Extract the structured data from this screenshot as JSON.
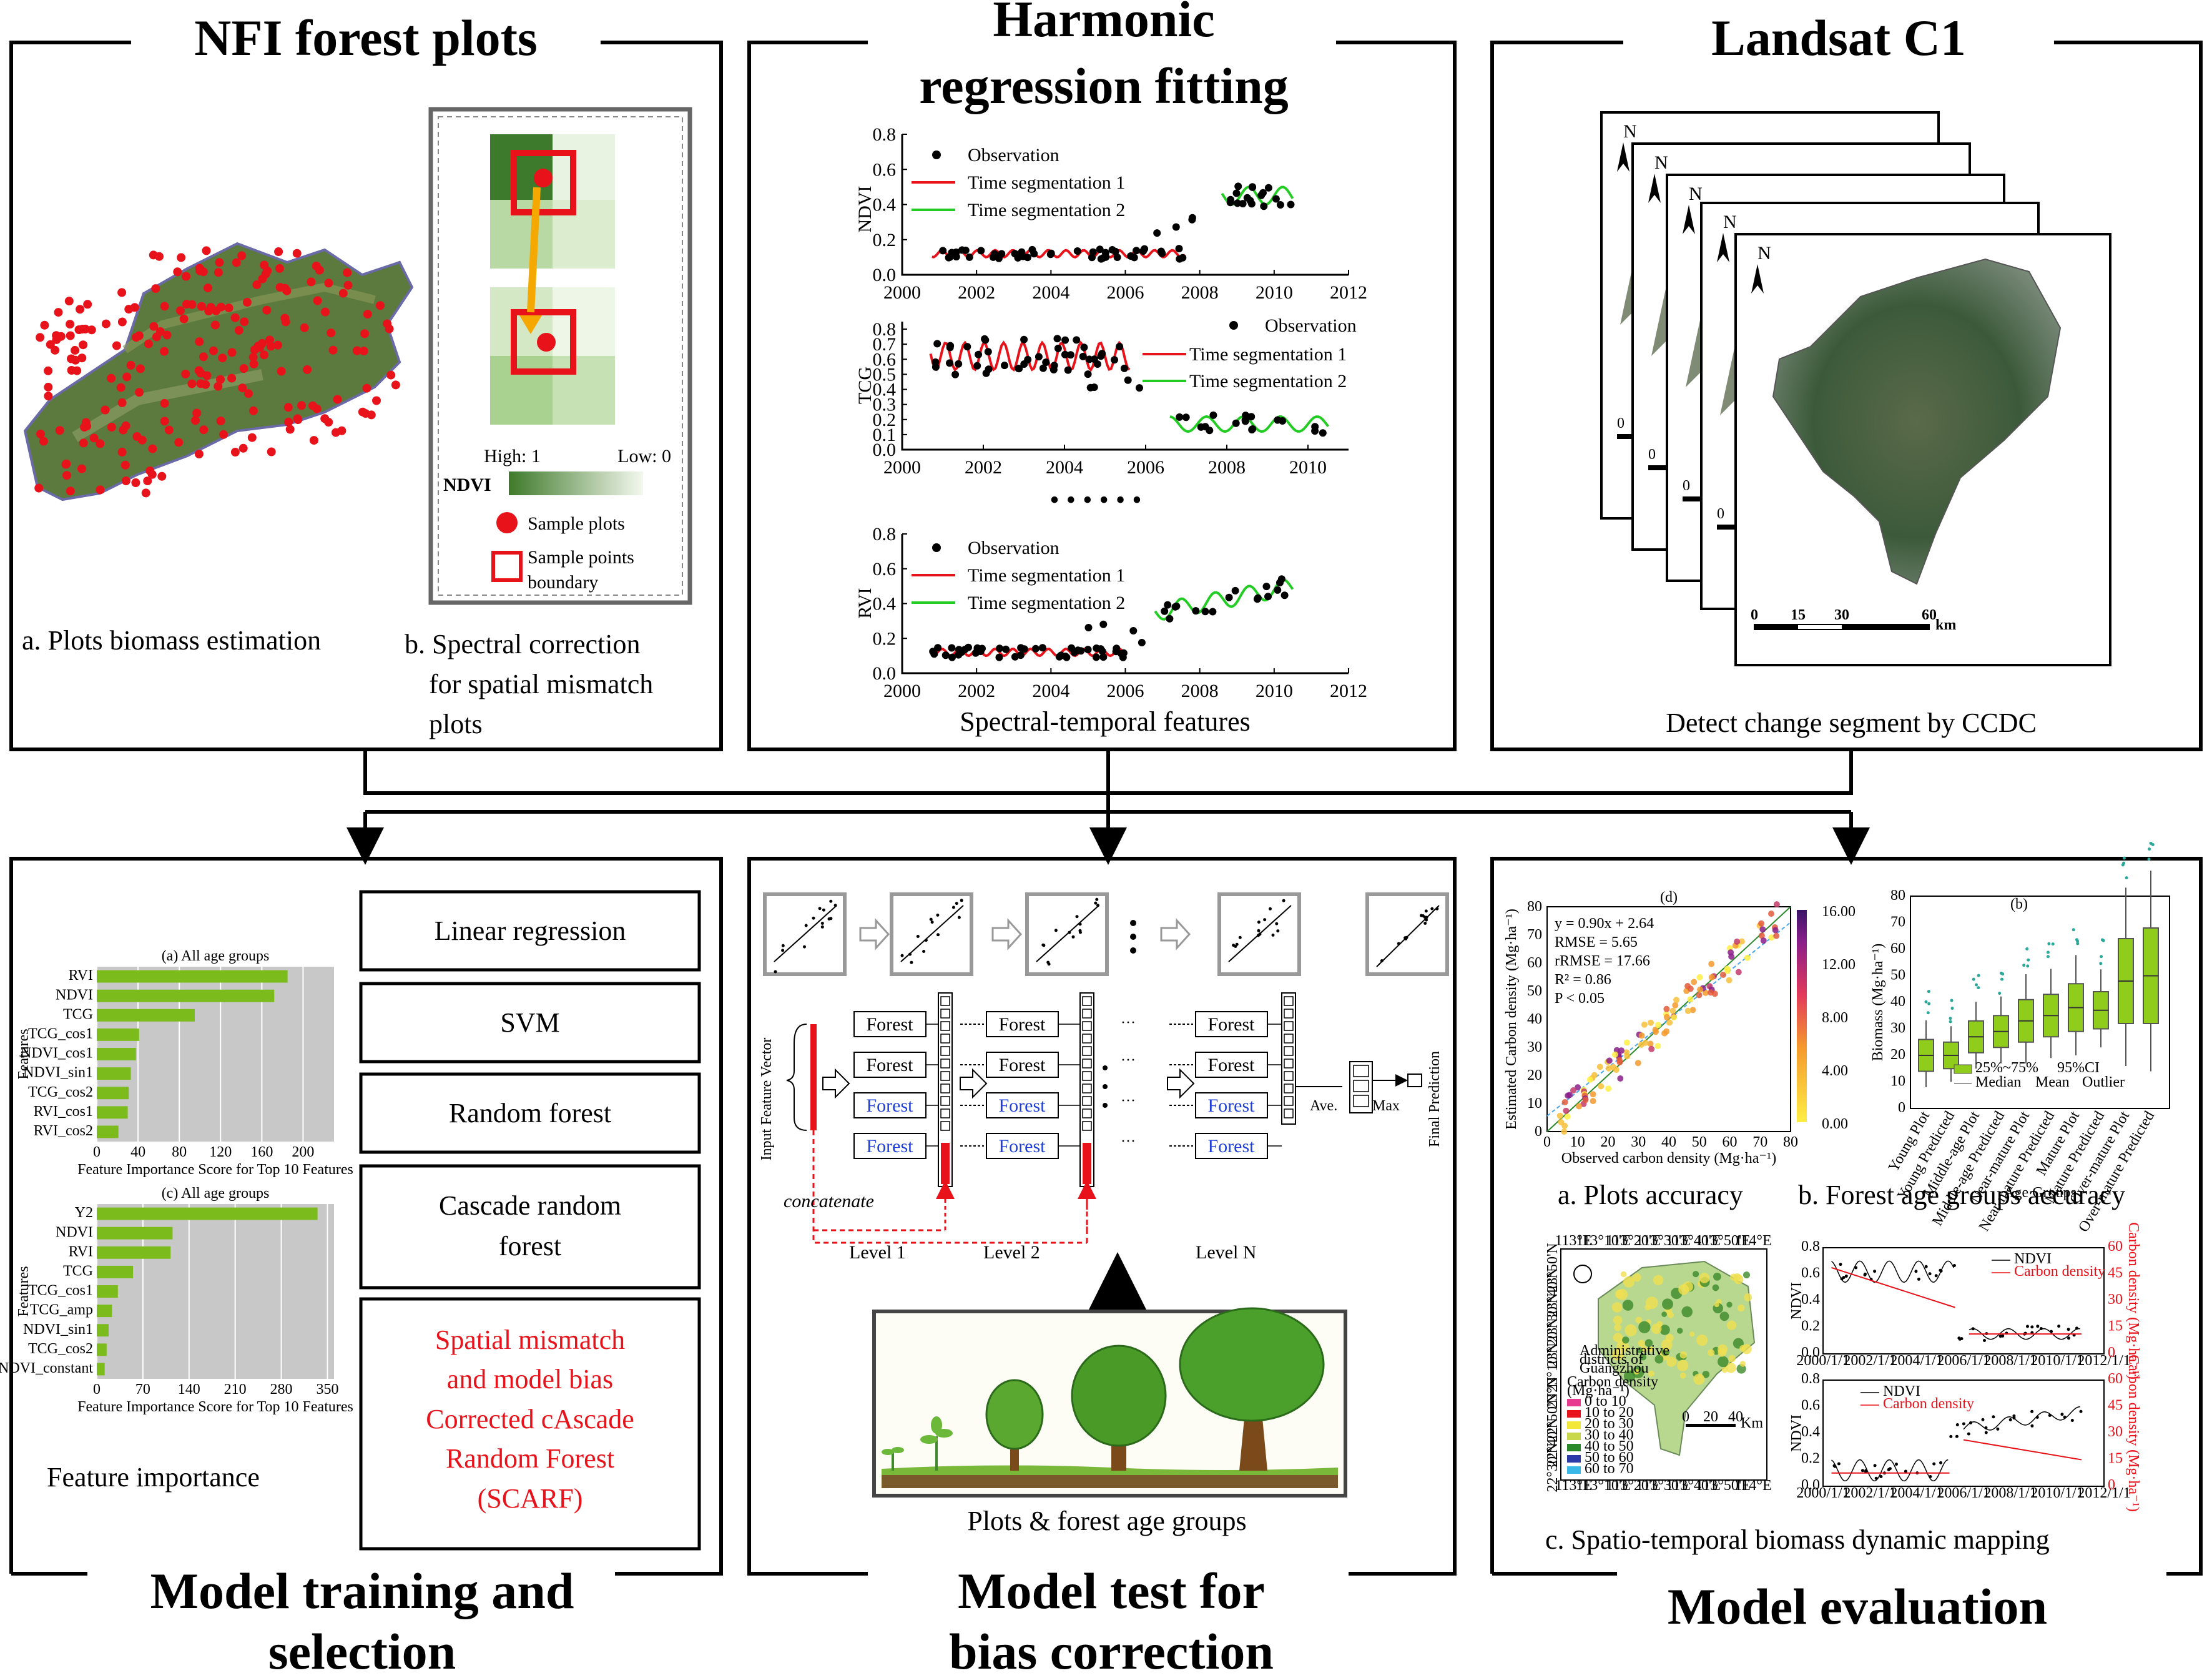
{
  "colors": {
    "forest_green": "#3c7a2a",
    "bar_green": "#7cbb1c",
    "accent_red": "#e8121b",
    "line_green": "#22cc22",
    "forest_blue": "#1f3fd6",
    "plot_gray": "#c8c8c8"
  },
  "panels": {
    "nfi": {
      "title": "NFI forest plots",
      "caption_a": "a. Plots biomass estimation",
      "caption_b_lines": [
        "b. Spectral correction",
        "for spatial mismatch",
        "plots"
      ],
      "legend": {
        "high": "High: 1",
        "low": "Low: 0",
        "ndvi": "NDVI",
        "sample_plots": "Sample plots",
        "sample_boundary_lines": [
          "Sample points",
          "boundary"
        ]
      }
    },
    "harmonic": {
      "title_lines": [
        "Harmonic",
        "regression fitting"
      ],
      "caption": "Spectral-temporal features",
      "ellipsis": "• • • • • •",
      "legend": {
        "observation": "Observation",
        "seg1": "Time segmentation 1",
        "seg2": "Time segmentation 2"
      },
      "x_ticks_a": [
        "2000",
        "2002",
        "2004",
        "2006",
        "2008",
        "2010",
        "2012"
      ],
      "x_ticks_b": [
        "2000",
        "2002",
        "2004",
        "2006",
        "2008",
        "2010"
      ],
      "plots": [
        {
          "ylabel": "NDVI",
          "yticks": [
            "0.0",
            "0.2",
            "0.4",
            "0.6",
            "0.8"
          ]
        },
        {
          "ylabel": "TCG",
          "yticks": [
            "0.0",
            "0.1",
            "0.2",
            "0.3",
            "0.4",
            "0.5",
            "0.6",
            "0.7",
            "0.8"
          ]
        },
        {
          "ylabel": "RVI",
          "yticks": [
            "0.0",
            "0.2",
            "0.4",
            "0.6",
            "0.8"
          ]
        }
      ]
    },
    "landsat": {
      "title": "Landsat C1",
      "caption": "Detect change segment by CCDC",
      "north": "N",
      "scale_ticks": [
        "0",
        "15",
        "30",
        "60"
      ],
      "scale_unit": "km",
      "back_scale_zero": "0"
    },
    "training": {
      "title_lines": [
        "Model training and",
        "selection"
      ],
      "caption": "Feature importance",
      "models": [
        "Linear regression",
        "SVM",
        "Random forest"
      ],
      "cascade_lines": [
        "Cascade random",
        "forest"
      ],
      "scarf_lines": [
        "Spatial mismatch",
        "and model bias",
        "Corrected cAscade",
        "Random Forest",
        "(SCARF)"
      ],
      "chart1": {
        "title": "(a) All age groups",
        "features": [
          "RVI",
          "NDVI",
          "TCG",
          "TCG_cos1",
          "NDVI_cos1",
          "NDVI_sin1",
          "TCG_cos2",
          "RVI_cos1",
          "RVI_cos2"
        ],
        "values": [
          185,
          172,
          95,
          41,
          38,
          33,
          31,
          30,
          21
        ],
        "ticks": [
          "0",
          "40",
          "80",
          "120",
          "160",
          "200"
        ],
        "max": 230,
        "xlabel": "Feature Importance Score for Top 10 Features",
        "ylabel": "Features"
      },
      "chart2": {
        "title": "(c) All age groups",
        "features": [
          "Y2",
          "NDVI",
          "RVI",
          "TCG",
          "TCG_cos1",
          "TCG_amp",
          "NDVI_sin1",
          "TCG_cos2",
          "NDVI_constant"
        ],
        "values": [
          335,
          115,
          112,
          55,
          32,
          23,
          18,
          15,
          12
        ],
        "ticks": [
          "0",
          "70",
          "140",
          "210",
          "280",
          "350"
        ],
        "max": 360,
        "xlabel": "Feature Importance Score for Top 10 Features",
        "ylabel": "Features"
      }
    },
    "test": {
      "title_lines": [
        "Model test for",
        "bias correction"
      ],
      "caption": "Plots & forest age groups",
      "input_label": "Input Feature Vector",
      "final_label": "Final Prediction",
      "forest": "Forest",
      "concatenate": "concatenate",
      "levels": [
        "Level 1",
        "Level 2",
        "Level N"
      ],
      "ave": "Ave.",
      "max": "Max"
    },
    "evaluation": {
      "title": "Model evaluation",
      "caption_a": "a. Plots accuracy",
      "caption_b": "b. Forest age groups accuracy",
      "caption_c": "c. Spatio-temporal biomass dynamic mapping",
      "scatter": {
        "tag": "(d)",
        "stats": [
          "y = 0.90x + 2.64",
          "RMSE = 5.65",
          "rRMSE = 17.66",
          "R² = 0.86",
          "P < 0.05"
        ],
        "xlabel": "Observed carbon density (Mg·ha⁻¹)",
        "ylabel": "Estimated Carbon density (Mg·ha⁻¹)",
        "ticks": [
          "0",
          "10",
          "20",
          "30",
          "40",
          "50",
          "60",
          "70",
          "80"
        ],
        "colorbar": [
          "0.00",
          "4.00",
          "8.00",
          "12.00",
          "16.00"
        ]
      },
      "boxplot": {
        "tag": "(b)",
        "ylabel": "Biomass (Mg·ha⁻¹)",
        "xlabel": "Age Groups",
        "yticks": [
          "0",
          "10",
          "20",
          "30",
          "40",
          "50",
          "60",
          "70",
          "80"
        ],
        "groups": [
          "Young Plot",
          "Young Predicted",
          "Middle-age Plot",
          "Middle-age Predicted",
          "Near-mature Plot",
          "Near-mature Predicted",
          "Mature Plot",
          "Mature Predicted",
          "Over-mature Plot",
          "Over-mature Predicted"
        ],
        "legend": [
          "25%~75%",
          "95%CI",
          "Median",
          "Mean",
          "Outlier"
        ]
      },
      "map": {
        "top_lon": [
          "113°E",
          "113°10'E",
          "113°20'E",
          "113°30'E",
          "113°40'E",
          "113°50'E",
          "114°E"
        ],
        "bottom_lon": [
          "113°E",
          "113°10'E",
          "113°20'E",
          "113°30'E",
          "113°40'E",
          "113°50'E",
          "114°E"
        ],
        "lat": [
          "23°50'N",
          "23°40'N",
          "23°30'N",
          "23°20'N",
          "23°10'N",
          "23°N",
          "22°50'N",
          "22°40'N",
          "22°30'N"
        ],
        "legend_title_lines": [
          "Administrative",
          "districts of",
          "Guangzhou"
        ],
        "carbon_title_lines": [
          "Carbon density",
          "(Mg·ha⁻¹)"
        ],
        "classes": [
          "0 to 10",
          "10 to 20",
          "20 to 30",
          "30 to 40",
          "40 to 50",
          "50 to 60",
          "60 to 70"
        ],
        "class_colors": [
          "#e83a8f",
          "#e8121b",
          "#f2e83a",
          "#c8d84a",
          "#2a8a2a",
          "#2a3aa8",
          "#3ab8e8"
        ],
        "scale": [
          "0",
          "20",
          "40"
        ],
        "scale_unit": "Km"
      },
      "ts": {
        "ndvi": "NDVI",
        "carbon": "Carbon density",
        "ylabel_left": "NDVI",
        "ylabel_right": "Carbon density (Mg·ha⁻¹)",
        "xticks": [
          "2000/1/1",
          "2002/1/1",
          "2004/1/1",
          "2006/1/1",
          "2008/1/1",
          "2010/1/1",
          "2012/1/1"
        ],
        "left_ticks": [
          "0.0",
          "0.2",
          "0.4",
          "0.6",
          "0.8"
        ],
        "right_ticks": [
          "0",
          "15",
          "30",
          "45",
          "60"
        ]
      }
    }
  }
}
